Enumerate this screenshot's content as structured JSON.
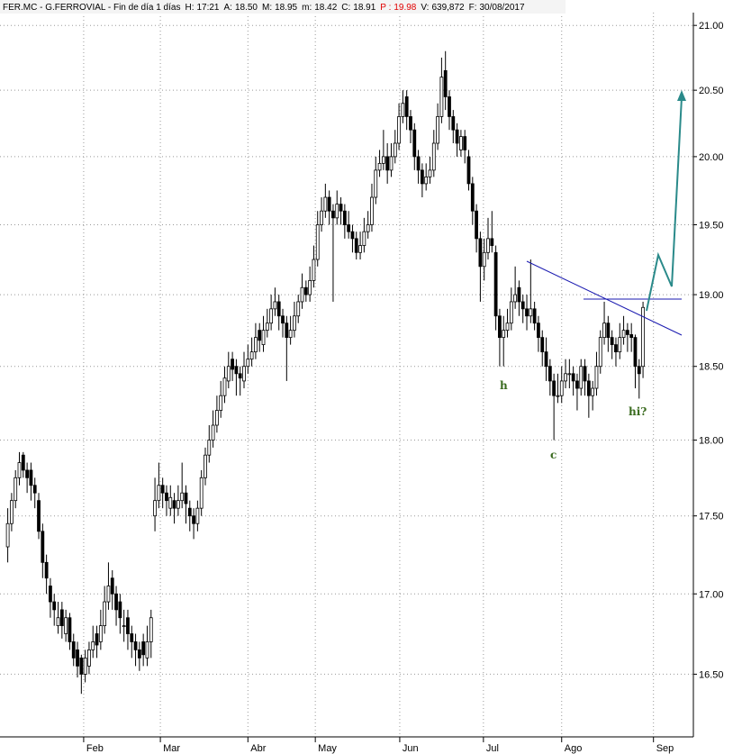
{
  "chart_data": {
    "type": "candlestick",
    "title": "FER.MC - G.FERROVIAL - Fin de día 1 días",
    "header_fields": [
      {
        "label": "H:",
        "value": "17:21"
      },
      {
        "label": "A:",
        "value": "18.50"
      },
      {
        "label": "M:",
        "value": "18.95"
      },
      {
        "label": "m:",
        "value": "18.42"
      },
      {
        "label": "C:",
        "value": "18.91"
      },
      {
        "label": "P :",
        "value": "19.98",
        "color": "#e00000"
      },
      {
        "label": "V:",
        "value": "639,872"
      },
      {
        "label": "F:",
        "value": "30/08/2017"
      }
    ],
    "log_scale": true,
    "grid": true,
    "up_color": "#ffffff",
    "down_color": "#000000",
    "ylim": [
      16.12,
      21.1
    ],
    "yticks": [
      {
        "value": 16.5,
        "label": "16.50"
      },
      {
        "value": 17,
        "label": "17.00"
      },
      {
        "value": 17.5,
        "label": "17.50"
      },
      {
        "value": 18,
        "label": "18.00"
      },
      {
        "value": 18.5,
        "label": "18.50"
      },
      {
        "value": 19,
        "label": "19.00"
      },
      {
        "value": 19.5,
        "label": "19.50"
      },
      {
        "value": 20,
        "label": "20.00"
      },
      {
        "value": 20.5,
        "label": "20.50"
      },
      {
        "value": 21,
        "label": "21.00"
      }
    ],
    "xlim": [
      -2,
      177
    ],
    "xticks": [
      {
        "value": 19.6,
        "label": "Feb"
      },
      {
        "value": 39.4,
        "label": "Mar"
      },
      {
        "value": 62,
        "label": "Abr"
      },
      {
        "value": 79.4,
        "label": "May"
      },
      {
        "value": 101.2,
        "label": "Jun"
      },
      {
        "value": 122.8,
        "label": "Jul"
      },
      {
        "value": 143,
        "label": "Ago"
      },
      {
        "value": 166.7,
        "label": "Sep"
      }
    ],
    "annotations": [
      "h",
      "c",
      "hi?"
    ],
    "ohlc": [
      [
        17.3,
        17.55,
        17.2,
        17.45
      ],
      [
        17.45,
        17.65,
        17.4,
        17.6
      ],
      [
        17.6,
        17.8,
        17.55,
        17.75
      ],
      [
        17.75,
        17.92,
        17.7,
        17.85
      ],
      [
        17.9,
        17.92,
        17.75,
        17.8
      ],
      [
        17.8,
        17.85,
        17.65,
        17.75
      ],
      [
        17.8,
        17.85,
        17.6,
        17.7
      ],
      [
        17.7,
        17.75,
        17.55,
        17.65
      ],
      [
        17.6,
        17.65,
        17.35,
        17.4
      ],
      [
        17.4,
        17.45,
        17.1,
        17.2
      ],
      [
        17.2,
        17.25,
        17.0,
        17.1
      ],
      [
        17.05,
        17.1,
        16.85,
        16.95
      ],
      [
        16.95,
        17.0,
        16.8,
        16.9
      ],
      [
        16.8,
        16.95,
        16.75,
        16.85
      ],
      [
        16.9,
        16.95,
        16.72,
        16.8
      ],
      [
        16.75,
        16.9,
        16.7,
        16.85
      ],
      [
        16.85,
        16.88,
        16.65,
        16.7
      ],
      [
        16.7,
        16.75,
        16.55,
        16.6
      ],
      [
        16.65,
        16.7,
        16.48,
        16.55
      ],
      [
        16.6,
        16.62,
        16.38,
        16.5
      ],
      [
        16.5,
        16.65,
        16.45,
        16.6
      ],
      [
        16.55,
        16.7,
        16.5,
        16.65
      ],
      [
        16.65,
        16.8,
        16.6,
        16.7
      ],
      [
        16.75,
        16.8,
        16.6,
        16.68
      ],
      [
        16.7,
        16.9,
        16.65,
        16.8
      ],
      [
        16.8,
        17.05,
        16.75,
        16.95
      ],
      [
        16.95,
        17.2,
        16.9,
        17.05
      ],
      [
        17.1,
        17.15,
        16.9,
        17.0
      ],
      [
        17.0,
        17.05,
        16.8,
        16.9
      ],
      [
        16.95,
        17.0,
        16.75,
        16.85
      ],
      [
        16.8,
        16.9,
        16.7,
        16.8
      ],
      [
        16.85,
        16.9,
        16.65,
        16.75
      ],
      [
        16.75,
        16.8,
        16.6,
        16.7
      ],
      [
        16.7,
        16.75,
        16.55,
        16.65
      ],
      [
        16.65,
        16.7,
        16.52,
        16.6
      ],
      [
        16.7,
        16.75,
        16.55,
        16.62
      ],
      [
        16.6,
        16.8,
        16.55,
        16.7
      ],
      [
        16.7,
        16.9,
        16.6,
        16.85
      ],
      [
        17.5,
        17.75,
        17.4,
        17.6
      ],
      [
        17.6,
        17.85,
        17.55,
        17.7
      ],
      [
        17.7,
        17.75,
        17.55,
        17.65
      ],
      [
        17.65,
        17.7,
        17.5,
        17.6
      ],
      [
        17.55,
        17.7,
        17.5,
        17.62
      ],
      [
        17.6,
        17.65,
        17.45,
        17.55
      ],
      [
        17.55,
        17.7,
        17.5,
        17.6
      ],
      [
        17.6,
        17.85,
        17.55,
        17.65
      ],
      [
        17.65,
        17.7,
        17.45,
        17.58
      ],
      [
        17.55,
        17.6,
        17.4,
        17.5
      ],
      [
        17.5,
        17.55,
        17.35,
        17.45
      ],
      [
        17.45,
        17.6,
        17.4,
        17.55
      ],
      [
        17.55,
        17.8,
        17.5,
        17.75
      ],
      [
        17.75,
        17.95,
        17.7,
        17.9
      ],
      [
        17.9,
        18.1,
        17.85,
        18.0
      ],
      [
        18.0,
        18.2,
        17.95,
        18.1
      ],
      [
        18.1,
        18.3,
        18.05,
        18.2
      ],
      [
        18.2,
        18.4,
        18.15,
        18.3
      ],
      [
        18.3,
        18.5,
        18.25,
        18.42
      ],
      [
        18.4,
        18.6,
        18.35,
        18.5
      ],
      [
        18.55,
        18.6,
        18.4,
        18.48
      ],
      [
        18.5,
        18.55,
        18.3,
        18.45
      ],
      [
        18.45,
        18.5,
        18.3,
        18.42
      ],
      [
        18.4,
        18.6,
        18.35,
        18.5
      ],
      [
        18.5,
        18.65,
        18.45,
        18.55
      ],
      [
        18.55,
        18.7,
        18.5,
        18.6
      ],
      [
        18.6,
        18.8,
        18.55,
        18.7
      ],
      [
        18.75,
        18.8,
        18.6,
        18.68
      ],
      [
        18.65,
        18.85,
        18.6,
        18.75
      ],
      [
        18.75,
        18.9,
        18.7,
        18.8
      ],
      [
        18.8,
        19.0,
        18.75,
        18.9
      ],
      [
        18.9,
        19.05,
        18.85,
        18.95
      ],
      [
        18.95,
        19.0,
        18.75,
        18.85
      ],
      [
        18.85,
        18.9,
        18.7,
        18.8
      ],
      [
        18.8,
        18.85,
        18.4,
        18.7
      ],
      [
        18.7,
        18.85,
        18.65,
        18.75
      ],
      [
        18.75,
        18.95,
        18.7,
        18.85
      ],
      [
        18.85,
        19.0,
        18.8,
        18.95
      ],
      [
        18.95,
        19.15,
        18.9,
        19.05
      ],
      [
        19.05,
        19.1,
        18.95,
        19.0
      ],
      [
        19.0,
        19.2,
        18.95,
        19.1
      ],
      [
        19.1,
        19.35,
        19.05,
        19.25
      ],
      [
        19.25,
        19.6,
        19.2,
        19.5
      ],
      [
        19.5,
        19.7,
        19.45,
        19.6
      ],
      [
        19.6,
        19.8,
        19.55,
        19.7
      ],
      [
        19.7,
        19.75,
        19.5,
        19.6
      ],
      [
        19.6,
        19.65,
        18.95,
        19.55
      ],
      [
        19.55,
        19.75,
        19.5,
        19.65
      ],
      [
        19.65,
        19.7,
        19.5,
        19.6
      ],
      [
        19.6,
        19.65,
        19.4,
        19.5
      ],
      [
        19.5,
        19.6,
        19.4,
        19.45
      ],
      [
        19.45,
        19.5,
        19.3,
        19.4
      ],
      [
        19.4,
        19.45,
        19.25,
        19.3
      ],
      [
        19.3,
        19.45,
        19.25,
        19.35
      ],
      [
        19.35,
        19.55,
        19.3,
        19.45
      ],
      [
        19.45,
        19.6,
        19.4,
        19.5
      ],
      [
        19.5,
        19.8,
        19.45,
        19.7
      ],
      [
        19.7,
        20.0,
        19.65,
        19.9
      ],
      [
        19.9,
        20.05,
        19.85,
        19.95
      ],
      [
        19.95,
        20.2,
        19.9,
        20.0
      ],
      [
        20.0,
        20.1,
        19.8,
        19.9
      ],
      [
        19.9,
        20.1,
        19.85,
        20.0
      ],
      [
        20.0,
        20.2,
        19.95,
        20.1
      ],
      [
        20.1,
        20.4,
        20.05,
        20.3
      ],
      [
        20.3,
        20.5,
        20.25,
        20.4
      ],
      [
        20.45,
        20.5,
        20.2,
        20.3
      ],
      [
        20.3,
        20.35,
        20.1,
        20.2
      ],
      [
        20.2,
        20.25,
        19.9,
        20.0
      ],
      [
        20.0,
        20.05,
        19.8,
        19.9
      ],
      [
        19.9,
        19.95,
        19.7,
        19.8
      ],
      [
        19.8,
        19.95,
        19.75,
        19.85
      ],
      [
        19.85,
        20.0,
        19.8,
        19.9
      ],
      [
        19.9,
        20.2,
        19.85,
        20.1
      ],
      [
        20.1,
        20.4,
        20.05,
        20.3
      ],
      [
        20.3,
        20.75,
        20.25,
        20.6
      ],
      [
        20.65,
        20.8,
        20.35,
        20.45
      ],
      [
        20.45,
        20.5,
        20.2,
        20.3
      ],
      [
        20.3,
        20.35,
        20.1,
        20.2
      ],
      [
        20.2,
        20.25,
        20.0,
        20.1
      ],
      [
        20.05,
        20.2,
        20.0,
        20.15
      ],
      [
        20.15,
        20.2,
        19.95,
        20.05
      ],
      [
        20.0,
        20.05,
        19.75,
        19.8
      ],
      [
        19.8,
        19.85,
        19.5,
        19.6
      ],
      [
        19.6,
        19.65,
        19.3,
        19.4
      ],
      [
        19.4,
        19.45,
        18.95,
        19.2
      ],
      [
        19.2,
        19.4,
        19.1,
        19.3
      ],
      [
        19.3,
        19.55,
        19.25,
        19.4
      ],
      [
        19.4,
        19.6,
        19.3,
        19.35
      ],
      [
        19.3,
        19.35,
        18.75,
        18.85
      ],
      [
        18.85,
        18.9,
        18.5,
        18.7
      ],
      [
        18.7,
        18.85,
        18.5,
        18.75
      ],
      [
        18.75,
        18.9,
        18.7,
        18.8
      ],
      [
        18.8,
        19.05,
        18.75,
        18.95
      ],
      [
        18.95,
        19.2,
        18.9,
        19.0
      ],
      [
        19.05,
        19.1,
        18.85,
        18.95
      ],
      [
        18.95,
        19.0,
        18.8,
        18.9
      ],
      [
        18.9,
        19.0,
        18.75,
        18.85
      ],
      [
        18.85,
        19.25,
        18.8,
        18.9
      ],
      [
        18.9,
        18.95,
        18.75,
        18.8
      ],
      [
        18.8,
        18.85,
        18.6,
        18.7
      ],
      [
        18.7,
        18.75,
        18.5,
        18.6
      ],
      [
        18.6,
        18.7,
        18.4,
        18.5
      ],
      [
        18.5,
        18.55,
        18.3,
        18.4
      ],
      [
        18.4,
        18.45,
        18.0,
        18.3
      ],
      [
        18.3,
        18.45,
        18.25,
        18.3
      ],
      [
        18.3,
        18.5,
        18.25,
        18.4
      ],
      [
        18.4,
        18.55,
        18.35,
        18.45
      ],
      [
        18.45,
        18.55,
        18.35,
        18.45
      ],
      [
        18.45,
        18.5,
        18.3,
        18.4
      ],
      [
        18.4,
        18.45,
        18.2,
        18.35
      ],
      [
        18.35,
        18.55,
        18.3,
        18.5
      ],
      [
        18.5,
        18.55,
        18.3,
        18.4
      ],
      [
        18.4,
        18.45,
        18.15,
        18.3
      ],
      [
        18.3,
        18.4,
        18.2,
        18.35
      ],
      [
        18.35,
        18.6,
        18.3,
        18.5
      ],
      [
        18.5,
        18.75,
        18.45,
        18.7
      ],
      [
        18.7,
        18.95,
        18.65,
        18.8
      ],
      [
        18.8,
        18.85,
        18.6,
        18.7
      ],
      [
        18.7,
        18.75,
        18.55,
        18.65
      ],
      [
        18.65,
        18.7,
        18.5,
        18.6
      ],
      [
        18.6,
        18.8,
        18.55,
        18.7
      ],
      [
        18.7,
        18.85,
        18.65,
        18.75
      ],
      [
        18.75,
        18.8,
        18.6,
        18.72
      ],
      [
        18.72,
        18.8,
        18.6,
        18.7
      ],
      [
        18.7,
        18.72,
        18.35,
        18.5
      ],
      [
        18.5,
        18.55,
        18.28,
        18.45
      ],
      [
        18.5,
        18.95,
        18.42,
        18.91
      ]
    ]
  }
}
